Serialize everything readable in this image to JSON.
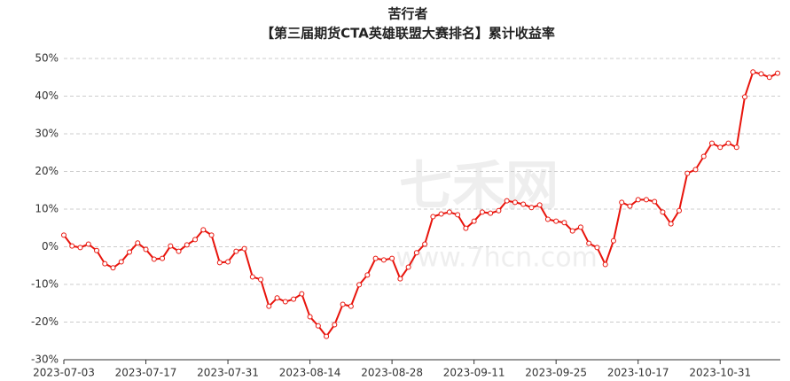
{
  "chart_data": {
    "type": "line",
    "title": "苦行者",
    "subtitle": "【第三届期货CTA英雄联盟大赛排名】累计收益率",
    "watermark": [
      "七禾网",
      "www.7hcn.com"
    ],
    "categories": [
      "2023-07-03",
      null,
      null,
      null,
      null,
      null,
      null,
      null,
      null,
      null,
      "2023-07-17",
      null,
      null,
      null,
      null,
      null,
      null,
      null,
      null,
      null,
      "2023-07-31",
      null,
      null,
      null,
      null,
      null,
      null,
      null,
      null,
      null,
      "2023-08-14",
      null,
      null,
      null,
      null,
      null,
      null,
      null,
      null,
      null,
      "2023-08-28",
      null,
      null,
      null,
      null,
      null,
      null,
      null,
      null,
      null,
      "2023-09-11",
      null,
      null,
      null,
      null,
      null,
      null,
      null,
      null,
      null,
      "2023-09-25",
      null,
      null,
      null,
      null,
      null,
      null,
      null,
      null,
      null,
      "2023-10-17",
      null,
      null,
      null,
      null,
      null,
      null,
      null,
      null,
      null,
      "2023-10-31",
      null,
      null,
      null,
      null,
      null,
      null,
      null
    ],
    "values": [
      3.1,
      0.2,
      -0.2,
      0.7,
      -1,
      -4.5,
      -5.6,
      -4,
      -1.4,
      1,
      -0.7,
      -3.3,
      -3.1,
      0.2,
      -1.2,
      0.5,
      1.9,
      4.5,
      3.1,
      -4.2,
      -4,
      -1.2,
      -0.5,
      -8,
      -8.7,
      -15.8,
      -13.6,
      -14.6,
      -13.9,
      -12.5,
      -18.6,
      -21,
      -23.8,
      -20.7,
      -15.3,
      -15.8,
      -10.1,
      -7.5,
      -3.1,
      -3.5,
      -3.1,
      -8.5,
      -5.4,
      -1.6,
      0.7,
      8,
      8.7,
      9.2,
      8.5,
      4.9,
      6.8,
      9.2,
      8.9,
      9.6,
      12.2,
      11.8,
      11.3,
      10.4,
      11.1,
      7.3,
      6.8,
      6.4,
      4.2,
      5.2,
      0.9,
      -0.2,
      -4.7,
      1.6,
      11.8,
      10.8,
      12.5,
      12.5,
      12,
      9.2,
      6.1,
      9.6,
      19.5,
      20.5,
      24,
      27.5,
      26.4,
      27.5,
      26.4,
      39.8,
      46.4,
      45.9,
      45,
      46.1
    ],
    "color": "#e8140c",
    "ylim": [
      -30,
      50
    ],
    "yticks": [
      {
        "value": -30,
        "label": "-30%"
      },
      {
        "value": -20,
        "label": "-20%"
      },
      {
        "value": -10,
        "label": "-10%"
      },
      {
        "value": 0,
        "label": "0%"
      },
      {
        "value": 10,
        "label": "10%"
      },
      {
        "value": 20,
        "label": "20%"
      },
      {
        "value": 30,
        "label": "30%"
      },
      {
        "value": 40,
        "label": "40%"
      },
      {
        "value": 50,
        "label": "50%"
      }
    ],
    "grid": true
  }
}
